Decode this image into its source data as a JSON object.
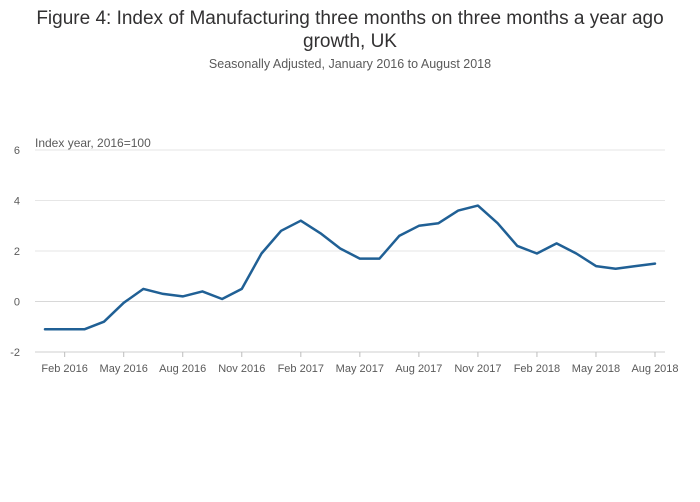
{
  "chart_data": {
    "type": "line",
    "title": "Figure 4: Index of Manufacturing three months on three months a year ago growth, UK",
    "subtitle": "Seasonally Adjusted, January 2016 to August 2018",
    "ylabel": "Index year, 2016=100",
    "xlabel": "",
    "ylim": [
      -2,
      6
    ],
    "yticks": [
      -2,
      0,
      2,
      4,
      6
    ],
    "xticks": [
      "Feb 2016",
      "May 2016",
      "Aug 2016",
      "Nov 2016",
      "Feb 2017",
      "May 2017",
      "Aug 2017",
      "Nov 2017",
      "Feb 2018",
      "May 2018",
      "Aug 2018"
    ],
    "grid": true,
    "line_color": "#206095",
    "x": [
      "Jan 2016",
      "Feb 2016",
      "Mar 2016",
      "Apr 2016",
      "May 2016",
      "Jun 2016",
      "Jul 2016",
      "Aug 2016",
      "Sep 2016",
      "Oct 2016",
      "Nov 2016",
      "Dec 2016",
      "Jan 2017",
      "Feb 2017",
      "Mar 2017",
      "Apr 2017",
      "May 2017",
      "Jun 2017",
      "Jul 2017",
      "Aug 2017",
      "Sep 2017",
      "Oct 2017",
      "Nov 2017",
      "Dec 2017",
      "Jan 2018",
      "Feb 2018",
      "Mar 2018",
      "Apr 2018",
      "May 2018",
      "Jun 2018",
      "Jul 2018",
      "Aug 2018"
    ],
    "values": [
      -1.1,
      -1.1,
      -1.1,
      -0.8,
      -0.05,
      0.5,
      0.3,
      0.2,
      0.4,
      0.1,
      0.5,
      1.9,
      2.8,
      3.2,
      2.7,
      2.1,
      1.7,
      1.7,
      2.6,
      3.0,
      3.1,
      3.6,
      3.8,
      3.1,
      2.2,
      1.9,
      2.3,
      1.9,
      1.4,
      1.3,
      1.4,
      1.5
    ]
  }
}
